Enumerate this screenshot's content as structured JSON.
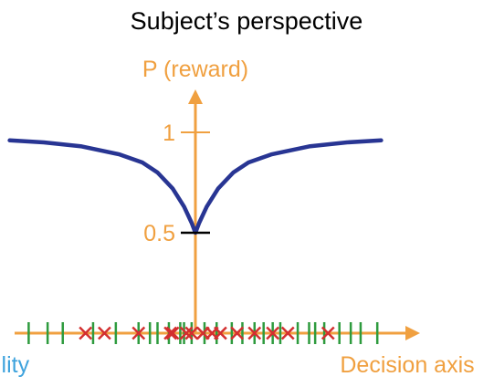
{
  "chart_data": {
    "type": "line",
    "title": "Subject’s perspective",
    "ylabel": "P (reward)",
    "xlabel": "Decision axis",
    "left_label": "ility",
    "yticks": [
      {
        "value": 0.5,
        "label": "0.5"
      },
      {
        "value": 1,
        "label": "1"
      }
    ],
    "ylim": [
      0,
      1.35
    ],
    "xlim": [
      -3.0,
      3.0
    ],
    "series": [
      {
        "x": [
          -2.45,
          -2.0,
          -1.5,
          -1.0,
          -0.7,
          -0.5,
          -0.3,
          -0.15,
          -0.05,
          0,
          0.05,
          0.15,
          0.3,
          0.5,
          0.7,
          1.0,
          1.5,
          2.0,
          2.45
        ],
        "y": [
          0.96,
          0.95,
          0.93,
          0.89,
          0.85,
          0.8,
          0.72,
          0.63,
          0.55,
          0.5,
          0.55,
          0.63,
          0.72,
          0.8,
          0.85,
          0.89,
          0.93,
          0.95,
          0.96
        ]
      }
    ],
    "markers": {
      "correct_ticks": [
        -2.2,
        -1.95,
        -1.75,
        -1.35,
        -1.05,
        -0.75,
        -0.6,
        -0.5,
        -0.35,
        -0.2,
        -0.15,
        -0.05,
        0.12,
        0.28,
        0.48,
        0.62,
        0.78,
        0.9,
        1.02,
        1.12,
        1.35,
        1.5,
        1.58,
        1.7,
        1.9,
        2.05,
        2.18,
        2.4
      ],
      "error_crosses": [
        -1.45,
        -1.2,
        -0.75,
        -0.33,
        -0.3,
        -0.12,
        -0.05,
        0.1,
        0.22,
        0.33,
        0.55,
        0.78,
        1.02,
        1.22,
        1.75
      ]
    },
    "colors": {
      "axis": "#F0A040",
      "curve": "#283593",
      "correct": "#2E9B3E",
      "error": "#D32F2F",
      "left_label": "#3FA3DD",
      "baseline_tick": "#000000"
    }
  }
}
